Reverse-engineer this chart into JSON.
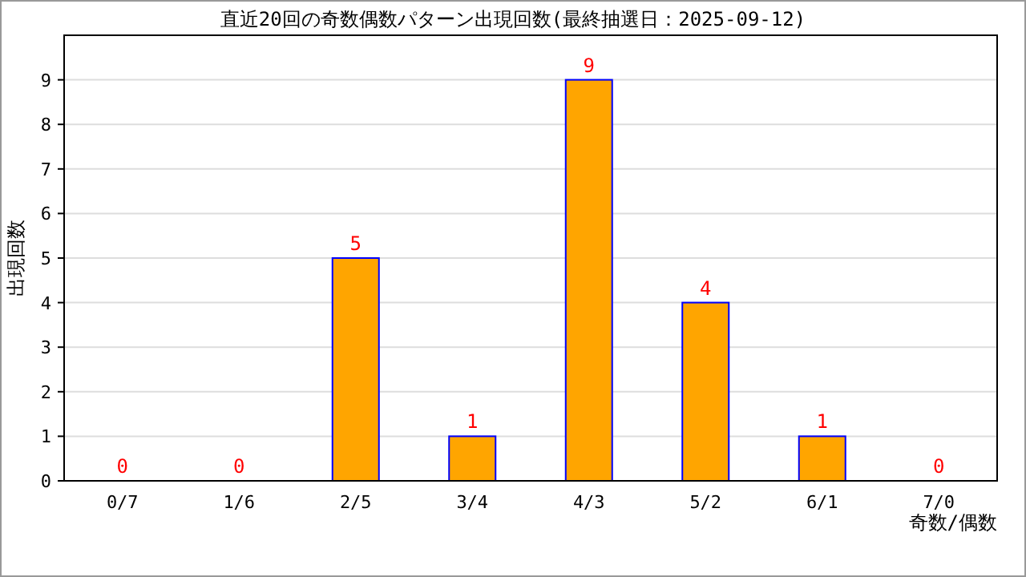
{
  "chart_data": {
    "type": "bar",
    "title": "直近20回の奇数偶数パターン出現回数(最終抽選日：2025-09-12)",
    "xlabel": "奇数/偶数",
    "ylabel": "出現回数",
    "categories": [
      "0/7",
      "1/6",
      "2/5",
      "3/4",
      "4/3",
      "5/2",
      "6/1",
      "7/0"
    ],
    "values": [
      0,
      0,
      5,
      1,
      9,
      4,
      1,
      0
    ],
    "color": "#ffa500",
    "ylim": [
      0,
      10
    ],
    "yticks": [
      0,
      1,
      2,
      3,
      4,
      5,
      6,
      7,
      8,
      9
    ],
    "grid": "y",
    "data_labels": true
  }
}
